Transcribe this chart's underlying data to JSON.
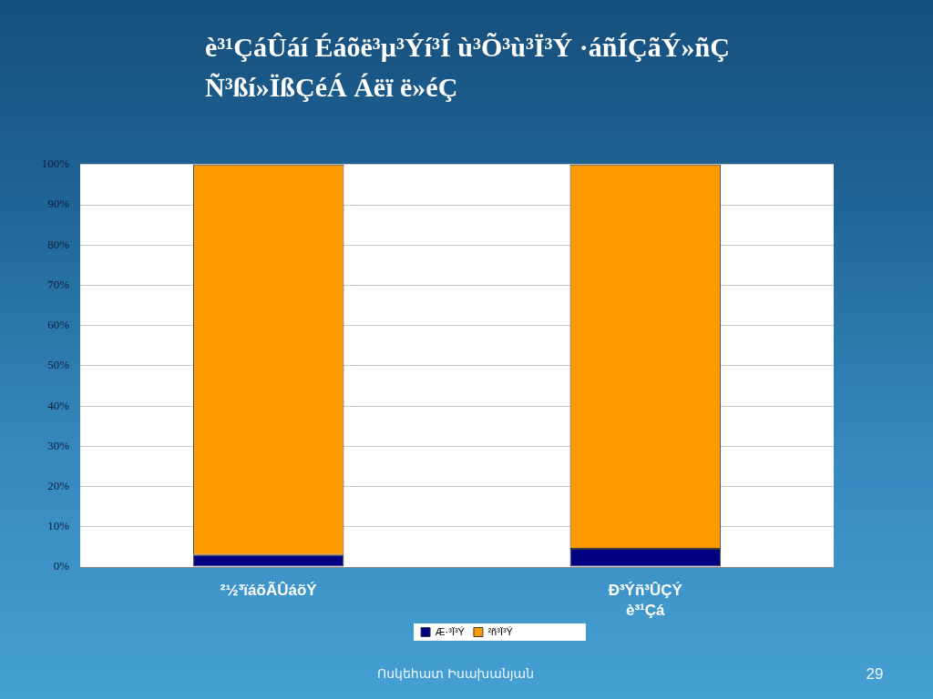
{
  "chart_data": {
    "type": "bar",
    "title": "è³¹ÇáÛáí Éáõë³µ³Ýí³Í ù³Õ³ù³Ï³Ý ·áñÍÇãÝ»ñÇ Ñ³ßí»ÏßÇéÁ Áëï ë»éÇ",
    "categories": [
      "²½³ïáõÃÛáõÝ",
      "Ð³Ýñ³ÛÇÝ è³¹Çá"
    ],
    "series": [
      {
        "name": "Æ·³Ï³Ý",
        "color": "#000080",
        "values": [
          3,
          4.5
        ]
      },
      {
        "name": "²ñ³Ï³Ý",
        "color": "#ff9900",
        "values": [
          97,
          95.5
        ]
      }
    ],
    "stacked": true,
    "ylim": [
      0,
      100
    ],
    "yticks": [
      {
        "value": 0,
        "label": "0%"
      },
      {
        "value": 10,
        "label": "10%"
      },
      {
        "value": 20,
        "label": "20%"
      },
      {
        "value": 30,
        "label": "30%"
      },
      {
        "value": 40,
        "label": "40%"
      },
      {
        "value": 50,
        "label": "50%"
      },
      {
        "value": 60,
        "label": "60%"
      },
      {
        "value": 70,
        "label": "70%"
      },
      {
        "value": 80,
        "label": "80%"
      },
      {
        "value": 90,
        "label": "90%"
      },
      {
        "value": 100,
        "label": "100%"
      }
    ],
    "grid": "y",
    "legend": "bottom",
    "annotations": [
      "Ոսկեհատ Իսախանյան",
      "29"
    ]
  }
}
